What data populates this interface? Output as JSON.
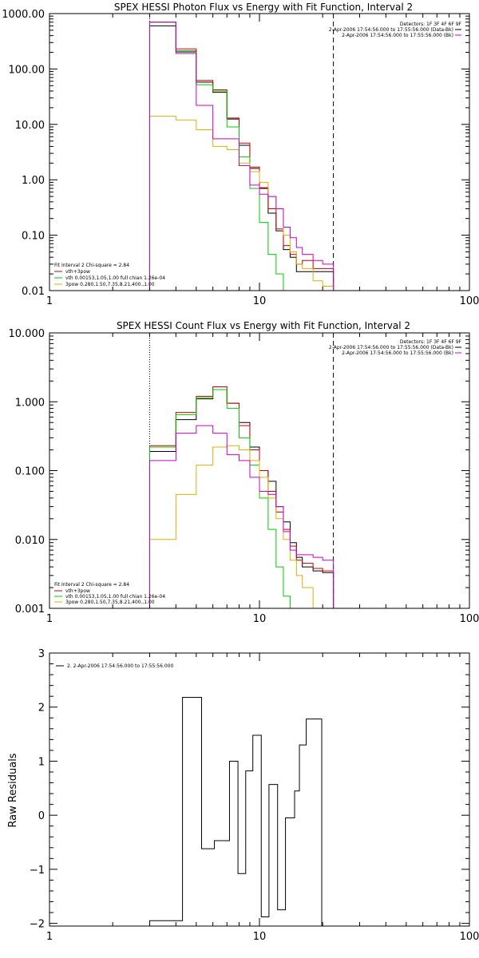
{
  "colors": {
    "data": "#000000",
    "total": "#cc0000",
    "vth": "#00cc00",
    "pow": "#e0b000",
    "bk": "#cc00cc"
  },
  "chart_data": [
    {
      "type": "line",
      "title": "SPEX HESSI Photon Flux vs Energy with Fit Function, Interval 2",
      "xscale": "log",
      "yscale": "log",
      "xlim": [
        1,
        100
      ],
      "ylim": [
        0.01,
        1000
      ],
      "xticks": [
        {
          "v": 1,
          "label": "1"
        },
        {
          "v": 10,
          "label": "10"
        },
        {
          "v": 100,
          "label": "100"
        }
      ],
      "yticks": [
        {
          "v": 1000,
          "label": "1000.00"
        },
        {
          "v": 100,
          "label": "100.00"
        },
        {
          "v": 10,
          "label": "10.00"
        },
        {
          "v": 1,
          "label": "1.00"
        },
        {
          "v": 0.1,
          "label": "0.10"
        },
        {
          "v": 0.01,
          "label": "0.01"
        }
      ],
      "header": [
        "Detectors: 1F 3F 4F 6F 9F",
        "2-Apr-2006 17:54:56.000 to 17:55:56.000 (Data-Bk)",
        "2-Apr-2006 17:54:56.000 to 17:55:56.000 (Bk)"
      ],
      "legend_title": "Fit Interval 2   Chi-square = 2.84",
      "legend": [
        "vth+3pow",
        "vth 0.00153,1.05,1.00  full chian 1.26e-04",
        "3pow 0.280,1.50,7.35,8.21,400.,1.00"
      ],
      "edges": [
        3,
        4,
        5,
        6,
        7,
        8,
        9,
        10,
        11,
        12,
        13,
        14,
        15,
        16,
        18,
        20,
        22.5
      ],
      "vlines": [
        {
          "x": 3,
          "style": "dotted"
        },
        {
          "x": 22.5,
          "style": "dashed"
        }
      ],
      "series": [
        {
          "color": "data",
          "values": [
            600,
            210,
            58,
            38,
            12.5,
            4.2,
            1.6,
            0.7,
            0.25,
            0.12,
            0.055,
            0.04,
            0.022,
            0.022,
            0.022,
            0.022
          ]
        },
        {
          "color": "total",
          "values": [
            700,
            230,
            62,
            42,
            13,
            4.6,
            1.7,
            0.72,
            0.3,
            0.13,
            0.065,
            0.045,
            0.03,
            0.035,
            0.025,
            0.025
          ]
        },
        {
          "color": "vth",
          "values": [
            700,
            200,
            52,
            40,
            9,
            2.6,
            0.7,
            0.17,
            0.045,
            0.02,
            0.01,
            0.009,
            0.009,
            0.009,
            0.009,
            0.009
          ]
        },
        {
          "color": "pow",
          "values": [
            14,
            12,
            8,
            4,
            3.5,
            2,
            1.4,
            0.9,
            0.5,
            0.3,
            0.1,
            0.05,
            0.03,
            0.025,
            0.015,
            0.012
          ]
        },
        {
          "color": "bk",
          "values": [
            700,
            190,
            22,
            5.5,
            5.5,
            1.8,
            0.8,
            0.55,
            0.5,
            0.3,
            0.14,
            0.09,
            0.06,
            0.045,
            0.035,
            0.03
          ]
        }
      ]
    },
    {
      "type": "line",
      "title": "SPEX HESSI Count Flux vs Energy with Fit Function, Interval 2",
      "xscale": "log",
      "yscale": "log",
      "xlim": [
        1,
        100
      ],
      "ylim": [
        0.001,
        10
      ],
      "xticks": [
        {
          "v": 1,
          "label": "1"
        },
        {
          "v": 10,
          "label": "10"
        },
        {
          "v": 100,
          "label": "100"
        }
      ],
      "yticks": [
        {
          "v": 10,
          "label": "10.000"
        },
        {
          "v": 1,
          "label": "1.000"
        },
        {
          "v": 0.1,
          "label": "0.100"
        },
        {
          "v": 0.01,
          "label": "0.010"
        },
        {
          "v": 0.001,
          "label": "0.001"
        }
      ],
      "header": [
        "Detectors: 1F 3F 4F 6F 9F",
        "2-Apr-2006 17:54:56.000 to 17:55:56.000 (Data-Bk)",
        "2-Apr-2006 17:54:56.000 to 17:55:56.000 (Bk)"
      ],
      "legend_title": "Fit Interval 2   Chi-square = 2.84",
      "legend": [
        "vth+3pow",
        "vth 0.00153,1.05,1.00  full chian 1.26e-04",
        "3pow 0.280,1.50,7.35,8.21,400.,1.00"
      ],
      "edges": [
        3,
        4,
        5,
        6,
        7,
        8,
        9,
        10,
        11,
        12,
        13,
        14,
        15,
        16,
        18,
        20,
        22.5
      ],
      "vlines": [
        {
          "x": 3,
          "style": "dotted"
        },
        {
          "x": 22.5,
          "style": "dashed"
        }
      ],
      "series": [
        {
          "color": "data",
          "values": [
            0.19,
            0.55,
            1.1,
            1.5,
            0.95,
            0.5,
            0.22,
            0.1,
            0.07,
            0.03,
            0.018,
            0.009,
            0.0055,
            0.004,
            0.0035,
            0.0033
          ]
        },
        {
          "color": "total",
          "values": [
            0.23,
            0.7,
            1.2,
            1.65,
            0.95,
            0.45,
            0.2,
            0.1,
            0.05,
            0.025,
            0.014,
            0.008,
            0.005,
            0.0045,
            0.0038,
            0.0035
          ]
        },
        {
          "color": "vth",
          "values": [
            0.22,
            0.65,
            1.15,
            1.5,
            0.8,
            0.3,
            0.12,
            0.04,
            0.014,
            0.004,
            0.0015,
            0.0009,
            0.0009,
            0.0009,
            0.0009,
            0.0009
          ]
        },
        {
          "color": "pow",
          "values": [
            0.01,
            0.045,
            0.12,
            0.22,
            0.23,
            0.2,
            0.14,
            0.08,
            0.04,
            0.02,
            0.01,
            0.005,
            0.003,
            0.002,
            0.001,
            0.0009
          ]
        },
        {
          "color": "bk",
          "values": [
            0.14,
            0.35,
            0.45,
            0.35,
            0.17,
            0.14,
            0.08,
            0.05,
            0.045,
            0.03,
            0.013,
            0.007,
            0.006,
            0.006,
            0.0055,
            0.005
          ]
        }
      ]
    },
    {
      "type": "line",
      "title": "",
      "ylabel": "Raw Residuals",
      "xscale": "log",
      "yscale": "linear",
      "xlim": [
        1,
        100
      ],
      "ylim": [
        -2.05,
        3
      ],
      "xticks": [
        {
          "v": 1,
          "label": "1"
        },
        {
          "v": 10,
          "label": "10"
        },
        {
          "v": 100,
          "label": "100"
        }
      ],
      "yticks": [
        {
          "v": 3,
          "label": "3"
        },
        {
          "v": 2,
          "label": "2"
        },
        {
          "v": 1,
          "label": "1"
        },
        {
          "v": 0,
          "label": "0"
        },
        {
          "v": -1,
          "label": "−1"
        },
        {
          "v": -2,
          "label": "−2"
        }
      ],
      "legend": [
        "2.  2-Apr-2006 17:54:56.000 to 17:55:56.000"
      ],
      "edges": [
        3,
        4.3,
        5.3,
        6.1,
        7.2,
        7.9,
        8.6,
        9.3,
        10.2,
        11.1,
        12.2,
        13.3,
        14.7,
        15.5,
        16.7,
        18.2,
        19.8,
        22.5
      ],
      "series": [
        {
          "color": "data",
          "values": [
            -1.95,
            2.18,
            -0.62,
            -0.47,
            1.0,
            -1.08,
            0.82,
            1.48,
            -1.88,
            0.57,
            -1.75,
            -0.05,
            0.45,
            1.3,
            1.78,
            1.78,
            -2.05
          ]
        }
      ]
    }
  ]
}
